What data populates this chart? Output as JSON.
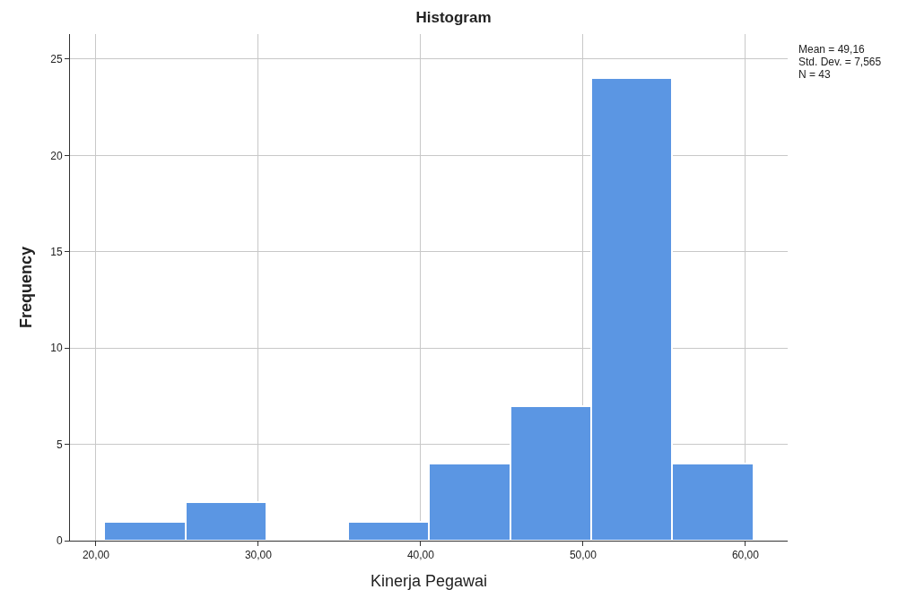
{
  "chart_data": {
    "type": "histogram",
    "title": "Histogram",
    "xlabel": "Kinerja Pegawai",
    "ylabel": "Frequency",
    "bins": [
      20.5,
      25.5,
      30.5,
      35.5,
      40.5,
      45.5,
      50.5,
      55.5,
      60.5
    ],
    "values": [
      1,
      2,
      0,
      1,
      4,
      7,
      24,
      4
    ],
    "color": "#5b96e3",
    "xlim": [
      18.4,
      62.6
    ],
    "xticks": [
      {
        "value": 20,
        "label": "20,00"
      },
      {
        "value": 30,
        "label": "30,00"
      },
      {
        "value": 40,
        "label": "40,00"
      },
      {
        "value": 50,
        "label": "50,00"
      },
      {
        "value": 60,
        "label": "60,00"
      }
    ],
    "ylim": [
      0,
      26.3
    ],
    "yticks": [
      0,
      5,
      10,
      15,
      20,
      25
    ],
    "grid": true,
    "annotations": [
      "Mean = 49,16",
      "Std. Dev. = 7,565",
      "N = 43"
    ]
  }
}
